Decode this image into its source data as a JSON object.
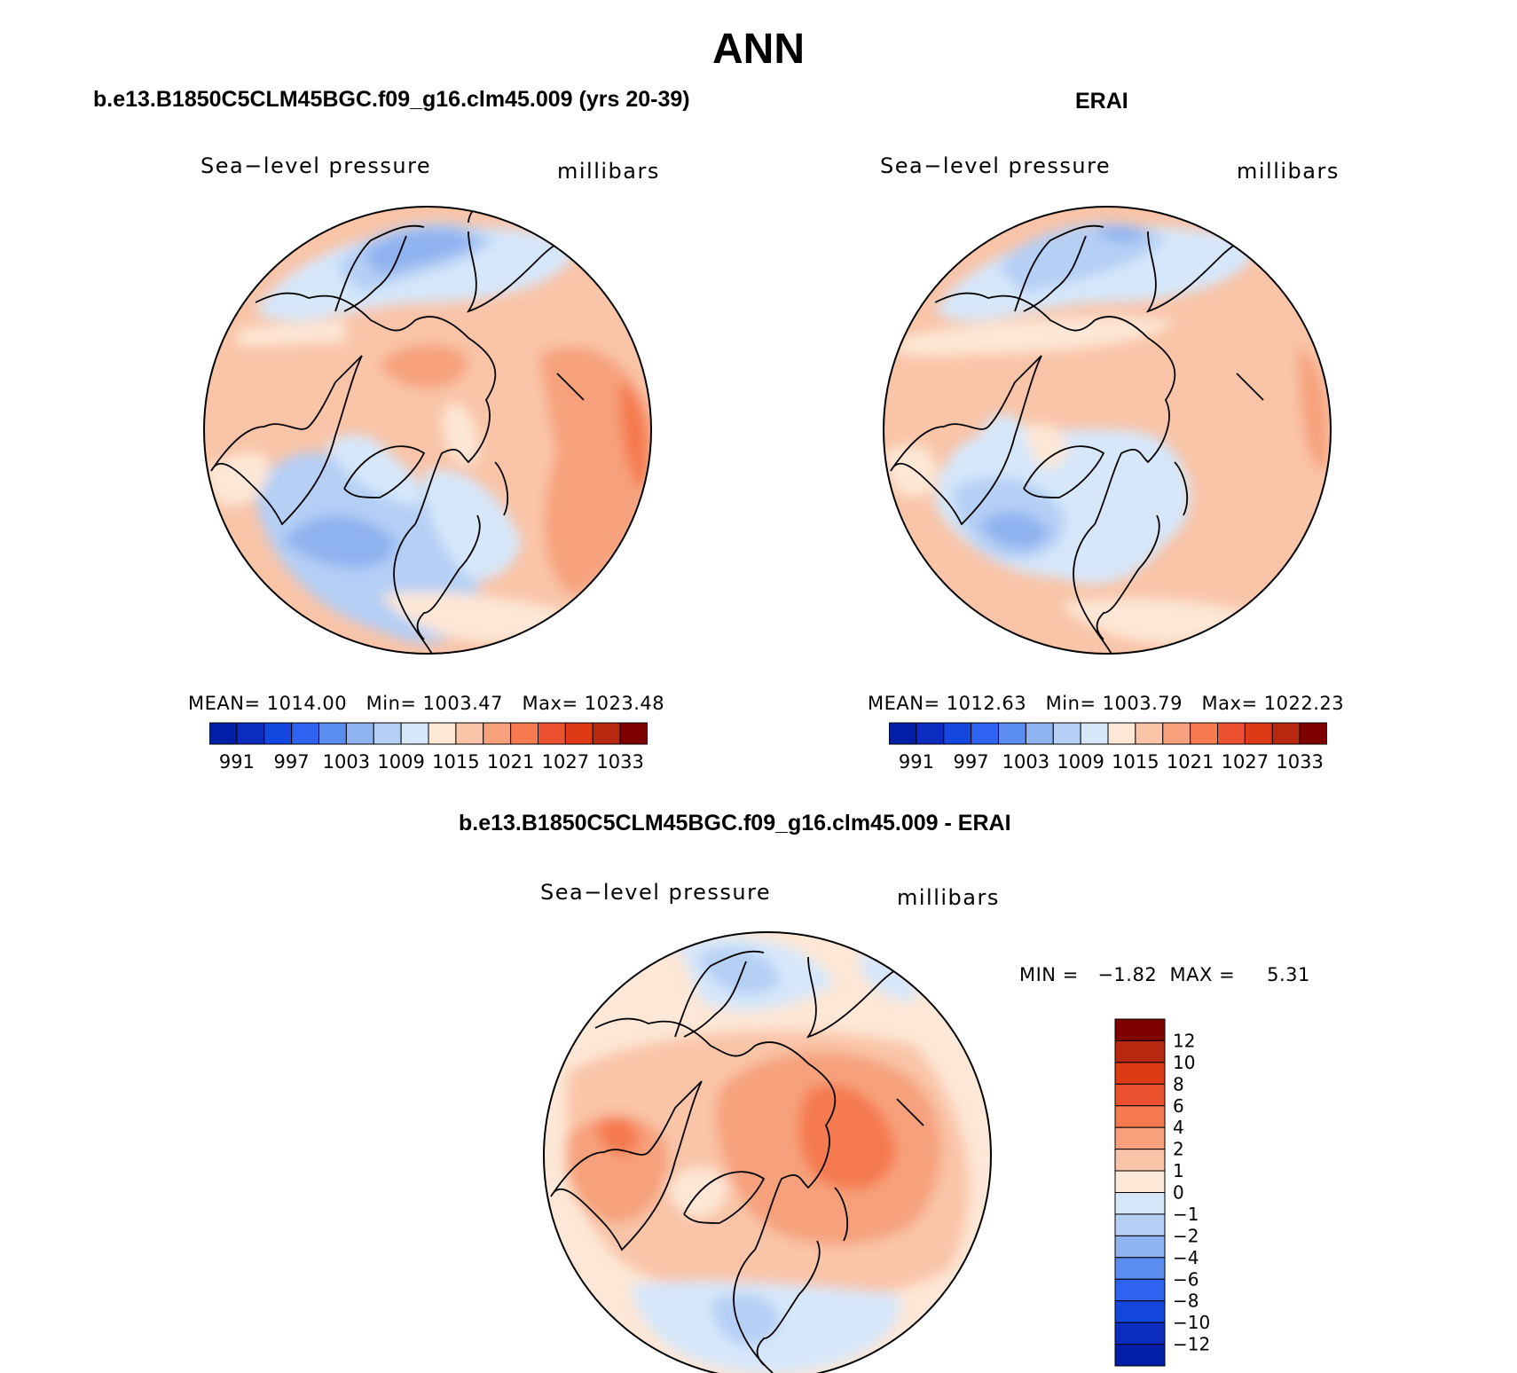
{
  "title": "ANN",
  "colors": {
    "pos": [
      "#fde7d6",
      "#f9c4a8",
      "#f6a17c",
      "#f57a4f",
      "#ec5230",
      "#df3a16",
      "#b82710",
      "#7f0000"
    ],
    "neg": [
      "#d6e7fa",
      "#b5cff5",
      "#8fb2f0",
      "#5b8df0",
      "#2d63f0",
      "#1446e0",
      "#0b2cbe",
      "#001ea6",
      "#00008a"
    ],
    "coast": "#000000"
  },
  "panels": [
    {
      "id": "model",
      "title": "b.e13.B1850C5CLM45BGC.f09_g16.clm45.009 (yrs 20-39)",
      "variable": "Sea−level pressure",
      "units": "millibars",
      "stats": {
        "mean_label": "MEAN=",
        "mean": "1014.00",
        "min_label": "Min=",
        "min": "1003.47",
        "max_label": "Max=",
        "max": "1023.48"
      },
      "colorbar_labels": [
        "991",
        "997",
        "1003",
        "1009",
        "1015",
        "1021",
        "1027",
        "1033"
      ]
    },
    {
      "id": "obs",
      "title": "ERAI",
      "variable": "Sea−level pressure",
      "units": "millibars",
      "stats": {
        "mean_label": "MEAN=",
        "mean": "1012.63",
        "min_label": "Min=",
        "min": "1003.79",
        "max_label": "Max=",
        "max": "1022.23"
      },
      "colorbar_labels": [
        "991",
        "997",
        "1003",
        "1009",
        "1015",
        "1021",
        "1027",
        "1033"
      ]
    }
  ],
  "diff": {
    "title": "b.e13.B1850C5CLM45BGC.f09_g16.clm45.009 - ERAI",
    "variable": "Sea−level pressure",
    "units": "millibars",
    "min_label": "MIN =",
    "min": "−1.82",
    "max_label": "MAX =",
    "max": "5.31",
    "colorbar_labels": [
      "12",
      "10",
      "8",
      "6",
      "4",
      "2",
      "1",
      "0",
      "−1",
      "−2",
      "−4",
      "−6",
      "−8",
      "−10",
      "−12"
    ]
  }
}
